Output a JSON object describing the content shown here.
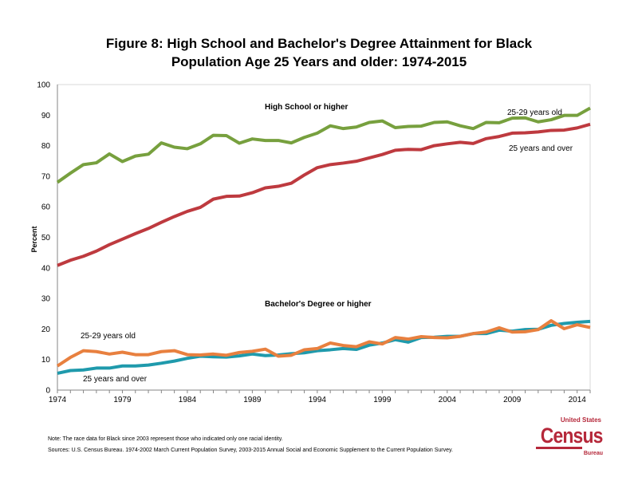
{
  "title_line1": "Figure 8: High School and Bachelor's Degree Attainment for Black",
  "title_line2": "Population Age 25 Years and older: 1974-2015",
  "notes": {
    "note": "Note: The race data for Black since 2003 represent those who indicated only one racial identity.",
    "sources": "Sources:  U.S. Census Bureau. 1974-2002 March Current Population Survey, 2003-2015 Annual Social and Economic Supplement to the Current Population Survey."
  },
  "logo": {
    "top": "United States",
    "main": "Census",
    "bottom": "Bureau"
  },
  "chart_data": {
    "type": "line",
    "title": "Figure 8: High School and Bachelor's Degree Attainment for Black Population Age 25 Years and older: 1974-2015",
    "xlabel": "",
    "ylabel": "Percent",
    "xlim": [
      1974,
      2015
    ],
    "ylim": [
      0,
      100
    ],
    "x_ticks": [
      1974,
      1979,
      1984,
      1989,
      1994,
      1999,
      2004,
      2009,
      2014
    ],
    "y_ticks": [
      0,
      10,
      20,
      30,
      40,
      50,
      60,
      70,
      80,
      90,
      100
    ],
    "grid": false,
    "annotations": {
      "hs_group": "High School or higher",
      "hs_2529": "25-29 years old",
      "hs_25over": "25 years and over",
      "ba_group": "Bachelor's Degree or higher",
      "ba_2529": "25-29 years old",
      "ba_25over": "25 years and over"
    },
    "x": [
      1974,
      1975,
      1976,
      1977,
      1978,
      1979,
      1980,
      1981,
      1982,
      1983,
      1984,
      1985,
      1986,
      1987,
      1988,
      1989,
      1990,
      1991,
      1992,
      1993,
      1994,
      1995,
      1996,
      1997,
      1998,
      1999,
      2000,
      2001,
      2002,
      2003,
      2004,
      2005,
      2006,
      2007,
      2008,
      2009,
      2010,
      2011,
      2012,
      2013,
      2014,
      2015
    ],
    "series": [
      {
        "name": "High School or higher, 25-29 years old",
        "color": "#77a03e",
        "values": [
          68,
          71,
          73.8,
          74.4,
          77.3,
          74.8,
          76.6,
          77.2,
          80.9,
          79.5,
          79,
          80.6,
          83.4,
          83.3,
          80.8,
          82.2,
          81.7,
          81.7,
          80.9,
          82.7,
          84.1,
          86.5,
          85.6,
          86.1,
          87.6,
          88.1,
          85.9,
          86.3,
          86.4,
          87.6,
          87.8,
          86.5,
          85.6,
          87.6,
          87.5,
          89,
          89.1,
          87.8,
          88.5,
          89.9,
          89.9,
          92.3
        ]
      },
      {
        "name": "High School or higher, 25 years and over",
        "color": "#be3a3f",
        "values": [
          40.8,
          42.5,
          43.8,
          45.5,
          47.6,
          49.4,
          51.2,
          52.9,
          54.9,
          56.8,
          58.5,
          59.8,
          62.5,
          63.4,
          63.5,
          64.6,
          66.2,
          66.7,
          67.7,
          70.4,
          72.8,
          73.8,
          74.3,
          74.9,
          76,
          77.1,
          78.5,
          78.8,
          78.7,
          80,
          80.6,
          81.1,
          80.7,
          82.3,
          83,
          84.1,
          84.2,
          84.5,
          85,
          85.1,
          85.8,
          87
        ]
      },
      {
        "name": "Bachelor's Degree or higher, 25 years and over",
        "color": "#1f9aac",
        "values": [
          5.5,
          6.4,
          6.6,
          7.2,
          7.2,
          7.9,
          7.9,
          8.2,
          8.8,
          9.5,
          10.4,
          11.1,
          10.9,
          10.8,
          11.2,
          11.8,
          11.3,
          11.5,
          11.9,
          12.2,
          12.9,
          13.2,
          13.6,
          13.3,
          14.7,
          15.4,
          16.5,
          15.7,
          17.2,
          17.3,
          17.6,
          17.6,
          18.5,
          18.5,
          19.6,
          19.3,
          19.8,
          19.9,
          21.2,
          21.8,
          22.2,
          22.5
        ]
      },
      {
        "name": "Bachelor's Degree or higher, 25-29 years old",
        "color": "#e8803f",
        "values": [
          7.9,
          10.7,
          12.9,
          12.6,
          11.8,
          12.4,
          11.6,
          11.6,
          12.6,
          12.9,
          11.6,
          11.5,
          11.8,
          11.4,
          12.3,
          12.7,
          13.4,
          11.1,
          11.4,
          13.2,
          13.6,
          15.4,
          14.6,
          14.2,
          15.8,
          15.1,
          17.2,
          16.7,
          17.5,
          17.2,
          17.1,
          17.6,
          18.5,
          19,
          20.4,
          19,
          19.1,
          19.8,
          22.7,
          20.1,
          21.4,
          20.5
        ]
      }
    ]
  }
}
